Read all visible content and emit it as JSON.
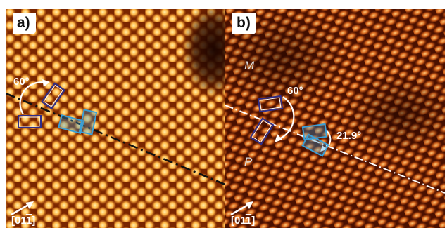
{
  "panels": [
    {
      "label": "a)",
      "angle": "60°",
      "direction": {
        "prefix": "[01",
        "bar": "1",
        "suffix": "]"
      },
      "colors": {
        "bg": "#5a1a00",
        "spot": "#ffb24a",
        "spot_core": "#ffe9a6",
        "line": "#111111"
      }
    },
    {
      "label": "b)",
      "angle": "60°",
      "angle2": "21.9°",
      "phase_top": "M",
      "phase_bottom": "P",
      "direction": {
        "prefix": "[01",
        "bar": "1",
        "suffix": "]"
      },
      "colors": {
        "bg": "#3a0a00",
        "spot": "#e0782a",
        "spot_core": "#ffc66a",
        "line": "#ffffff"
      }
    }
  ],
  "accent_colors": {
    "molecule_outline": "#3a3a8a",
    "molecule_fill_blue": "#3aa0d8",
    "arrow": "#ffffff"
  }
}
